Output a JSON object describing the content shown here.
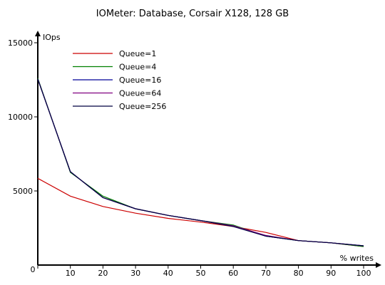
{
  "chart_data": {
    "type": "line",
    "title": "IOMeter: Database, Corsair X128, 128 GB",
    "xlabel": "% writes",
    "ylabel": "IOps",
    "xlim": [
      0,
      100
    ],
    "ylim": [
      0,
      15000
    ],
    "xticks": [
      0,
      10,
      20,
      30,
      40,
      50,
      60,
      70,
      80,
      90,
      100
    ],
    "yticks": [
      0,
      5000,
      10000,
      15000
    ],
    "grid": false,
    "legend_position": "top-left",
    "x": [
      0,
      10,
      20,
      30,
      40,
      50,
      60,
      70,
      80,
      90,
      100
    ],
    "series": [
      {
        "name": "Queue=1",
        "color": "#cc0000",
        "values": [
          5850,
          4650,
          3950,
          3500,
          3150,
          2900,
          2600,
          2200,
          1650,
          1500,
          1250
        ]
      },
      {
        "name": "Queue=4",
        "color": "#008000",
        "values": [
          12600,
          6250,
          4650,
          3800,
          3350,
          3000,
          2700,
          1950,
          1650,
          1500,
          1250
        ]
      },
      {
        "name": "Queue=16",
        "color": "#000099",
        "values": [
          12550,
          6300,
          4550,
          3800,
          3350,
          3000,
          2650,
          1950,
          1650,
          1500,
          1300
        ]
      },
      {
        "name": "Queue=64",
        "color": "#800080",
        "values": [
          12550,
          6300,
          4550,
          3800,
          3350,
          3000,
          2650,
          2000,
          1650,
          1500,
          1300
        ]
      },
      {
        "name": "Queue=256",
        "color": "#000040",
        "values": [
          12550,
          6300,
          4550,
          3800,
          3350,
          3000,
          2600,
          1950,
          1650,
          1500,
          1300
        ]
      }
    ]
  }
}
